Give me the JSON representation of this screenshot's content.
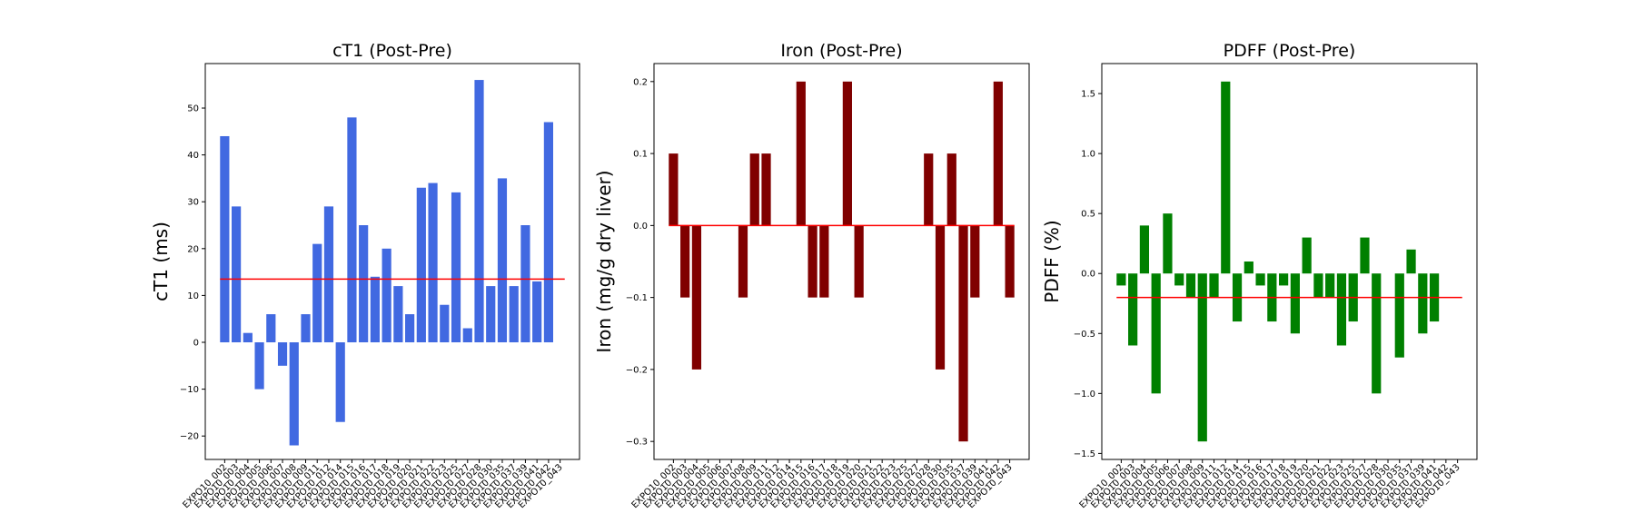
{
  "chart_data": [
    {
      "type": "bar",
      "title": "cT1 (Post-Pre)",
      "xlabel": "",
      "ylabel": "cT1 (ms)",
      "color": "#4169e1",
      "ylim": [
        -25,
        59.5
      ],
      "yticks": [
        -20,
        -10,
        0,
        10,
        20,
        30,
        40,
        50
      ],
      "ytick_labels": [
        "−20",
        "−10",
        "0",
        "10",
        "20",
        "30",
        "40",
        "50"
      ],
      "reference_line": {
        "y": 13.5,
        "color": "#ff0000"
      },
      "categories": [
        "EXPO10_002",
        "EXPO10_003",
        "EXPO10_004",
        "EXPO10_005",
        "EXPO10_006",
        "EXPO10_007",
        "EXPO10_008",
        "EXPO10_009",
        "EXPO10_011",
        "EXPO10_012",
        "EXPO10_014",
        "EXPO10_015",
        "EXPO10_016",
        "EXPO10_017",
        "EXPO10_018",
        "EXPO10_019",
        "EXPO10_020",
        "EXPO10_021",
        "EXPO10_022",
        "EXPO10_023",
        "EXPO10_025",
        "EXPO10_027",
        "EXPO10_028",
        "EXPO10_030",
        "EXPO10_035",
        "EXPO10_037",
        "EXPO10_039",
        "EXPO10_041",
        "EXPO10_042",
        "EXPO10_043"
      ],
      "values": [
        44,
        29,
        2,
        -10,
        6,
        -5,
        -22,
        6,
        21,
        29,
        -17,
        48,
        25,
        14,
        20,
        12,
        6,
        33,
        34,
        8,
        32,
        3,
        56,
        12,
        35,
        12,
        25,
        13,
        47,
        null
      ],
      "grid": false
    },
    {
      "type": "bar",
      "title": "Iron (Post-Pre)",
      "xlabel": "",
      "ylabel": "Iron (mg/g dry liver)",
      "color": "#800000",
      "ylim": [
        -0.325,
        0.225
      ],
      "yticks": [
        -0.3,
        -0.2,
        -0.1,
        0.0,
        0.1,
        0.2
      ],
      "ytick_labels": [
        "−0.3",
        "−0.2",
        "−0.1",
        "0.0",
        "0.1",
        "0.2"
      ],
      "reference_line": {
        "y": 0.0,
        "color": "#ff0000"
      },
      "categories": [
        "EXPO10_002",
        "EXPO10_003",
        "EXPO10_004",
        "EXPO10_005",
        "EXPO10_006",
        "EXPO10_007",
        "EXPO10_008",
        "EXPO10_009",
        "EXPO10_011",
        "EXPO10_012",
        "EXPO10_014",
        "EXPO10_015",
        "EXPO10_016",
        "EXPO10_017",
        "EXPO10_018",
        "EXPO10_019",
        "EXPO10_020",
        "EXPO10_021",
        "EXPO10_022",
        "EXPO10_023",
        "EXPO10_025",
        "EXPO10_027",
        "EXPO10_028",
        "EXPO10_030",
        "EXPO10_035",
        "EXPO10_037",
        "EXPO10_039",
        "EXPO10_041",
        "EXPO10_042",
        "EXPO10_043"
      ],
      "values": [
        0.1,
        -0.1,
        -0.2,
        0,
        0,
        0,
        -0.1,
        0.1,
        0.1,
        0,
        0,
        0.2,
        -0.1,
        -0.1,
        0,
        0.2,
        -0.1,
        0,
        0,
        0,
        0,
        0,
        0.1,
        -0.2,
        0.1,
        -0.3,
        -0.1,
        0,
        0.2,
        -0.1
      ],
      "grid": false
    },
    {
      "type": "bar",
      "title": "PDFF (Post-Pre)",
      "xlabel": "",
      "ylabel": "PDFF (%)",
      "color": "#008000",
      "ylim": [
        -1.55,
        1.75
      ],
      "yticks": [
        -1.5,
        -1.0,
        -0.5,
        0.0,
        0.5,
        1.0,
        1.5
      ],
      "ytick_labels": [
        "−1.5",
        "−1.0",
        "−0.5",
        "0.0",
        "0.5",
        "1.0",
        "1.5"
      ],
      "reference_line": {
        "y": -0.2,
        "color": "#ff0000"
      },
      "categories": [
        "EXPO10_002",
        "EXPO10_003",
        "EXPO10_004",
        "EXPO10_005",
        "EXPO10_006",
        "EXPO10_007",
        "EXPO10_008",
        "EXPO10_009",
        "EXPO10_011",
        "EXPO10_012",
        "EXPO10_014",
        "EXPO10_015",
        "EXPO10_016",
        "EXPO10_017",
        "EXPO10_018",
        "EXPO10_019",
        "EXPO10_020",
        "EXPO10_021",
        "EXPO10_022",
        "EXPO10_023",
        "EXPO10_025",
        "EXPO10_027",
        "EXPO10_028",
        "EXPO10_030",
        "EXPO10_035",
        "EXPO10_037",
        "EXPO10_039",
        "EXPO10_041",
        "EXPO10_042",
        "EXPO10_043"
      ],
      "values": [
        -0.1,
        -0.6,
        0.4,
        -1.0,
        0.5,
        -0.1,
        -0.2,
        -1.4,
        -0.2,
        1.6,
        -0.4,
        0.1,
        -0.1,
        -0.4,
        -0.1,
        -0.5,
        0.3,
        -0.2,
        -0.2,
        -0.6,
        -0.4,
        0.3,
        -1.0,
        0.0,
        -0.7,
        0.2,
        -0.5,
        -0.4,
        null,
        null
      ],
      "grid": false
    }
  ]
}
